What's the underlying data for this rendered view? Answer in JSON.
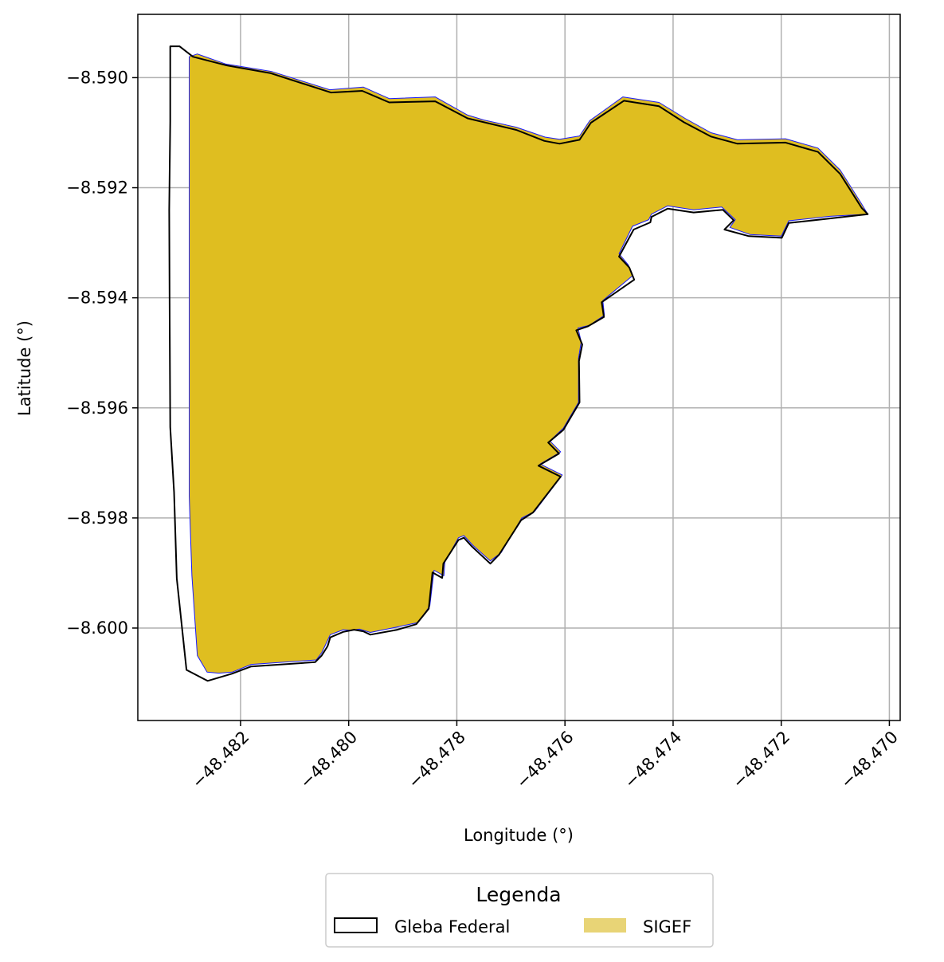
{
  "chart_data": {
    "type": "map",
    "xlabel": "Longitude (°)",
    "ylabel": "Latitude (°)",
    "xlim": [
      -48.4839,
      -48.4698
    ],
    "ylim": [
      -8.60168,
      -8.58885
    ],
    "xticks": [
      -48.482,
      -48.48,
      -48.478,
      -48.476,
      -48.474,
      -48.472,
      -48.47
    ],
    "xtick_labels": [
      "−48.482",
      "−48.480",
      "−48.478",
      "−48.476",
      "−48.474",
      "−48.472",
      "−48.470"
    ],
    "yticks": [
      -8.59,
      -8.592,
      -8.594,
      -8.596,
      -8.598,
      -8.6
    ],
    "ytick_labels": [
      "−8.590",
      "−8.592",
      "−8.594",
      "−8.596",
      "−8.598",
      "−8.600"
    ],
    "grid": true,
    "legend": {
      "title": "Legenda",
      "placement": "bottom-center",
      "entries": [
        {
          "label": "Gleba Federal",
          "style": "outline",
          "color": "#000000"
        },
        {
          "label": "SIGEF",
          "style": "fill",
          "color": "#e8d476"
        }
      ]
    },
    "colors": {
      "sigef_fill": "#dfbe20",
      "sigef_edge": "#1a1aff",
      "gleba_edge": "#000000",
      "grid": "#b0b0b0"
    },
    "series": [
      {
        "name": "Gleba Federal",
        "kind": "polygon-outline",
        "coords": [
          [
            -48.48313,
            -8.58943
          ],
          [
            -48.48288,
            -8.58962
          ],
          [
            -48.48225,
            -8.58978
          ],
          [
            -48.48144,
            -8.58992
          ],
          [
            -48.48033,
            -8.59027
          ],
          [
            -48.47975,
            -8.59024
          ],
          [
            -48.47925,
            -8.59045
          ],
          [
            -48.4784,
            -8.59043
          ],
          [
            -48.4778,
            -8.59074
          ],
          [
            -48.4769,
            -8.59095
          ],
          [
            -48.47638,
            -8.59115
          ],
          [
            -48.4761,
            -8.5912
          ],
          [
            -48.47573,
            -8.59113
          ],
          [
            -48.47552,
            -8.59082
          ],
          [
            -48.47491,
            -8.59042
          ],
          [
            -48.47426,
            -8.59052
          ],
          [
            -48.4738,
            -8.59081
          ],
          [
            -48.4733,
            -8.59107
          ],
          [
            -48.47281,
            -8.5912
          ],
          [
            -48.47192,
            -8.59118
          ],
          [
            -48.47132,
            -8.59135
          ],
          [
            -48.47091,
            -8.59175
          ],
          [
            -48.47051,
            -8.59237
          ],
          [
            -48.4704,
            -8.59248
          ],
          [
            -48.4712,
            -8.59257
          ],
          [
            -48.47186,
            -8.59264
          ],
          [
            -48.47199,
            -8.59291
          ],
          [
            -48.4726,
            -8.59288
          ],
          [
            -48.47305,
            -8.59276
          ],
          [
            -48.47288,
            -8.59259
          ],
          [
            -48.47308,
            -8.5924
          ],
          [
            -48.47362,
            -8.59245
          ],
          [
            -48.4741,
            -8.59238
          ],
          [
            -48.4744,
            -8.59253
          ],
          [
            -48.47442,
            -8.59263
          ],
          [
            -48.47473,
            -8.59276
          ],
          [
            -48.475,
            -8.59325
          ],
          [
            -48.47481,
            -8.59345
          ],
          [
            -48.47472,
            -8.59367
          ],
          [
            -48.47532,
            -8.59408
          ],
          [
            -48.47528,
            -8.59435
          ],
          [
            -48.47558,
            -8.59452
          ],
          [
            -48.47579,
            -8.59459
          ],
          [
            -48.47568,
            -8.59485
          ],
          [
            -48.47574,
            -8.59515
          ],
          [
            -48.47573,
            -8.5959
          ],
          [
            -48.47603,
            -8.5964
          ],
          [
            -48.47631,
            -8.59663
          ],
          [
            -48.47611,
            -8.59683
          ],
          [
            -48.47649,
            -8.59705
          ],
          [
            -48.47608,
            -8.59725
          ],
          [
            -48.47659,
            -8.5979
          ],
          [
            -48.47681,
            -8.59804
          ],
          [
            -48.47722,
            -8.59867
          ],
          [
            -48.47738,
            -8.59883
          ],
          [
            -48.47773,
            -8.59851
          ],
          [
            -48.47787,
            -8.59836
          ],
          [
            -48.47797,
            -8.5984
          ],
          [
            -48.47825,
            -8.59883
          ],
          [
            -48.47827,
            -8.59909
          ],
          [
            -48.47845,
            -8.59899
          ],
          [
            -48.47852,
            -8.59965
          ],
          [
            -48.47875,
            -8.59993
          ],
          [
            -48.4791,
            -8.60003
          ],
          [
            -48.4796,
            -8.60012
          ],
          [
            -48.47973,
            -8.60006
          ],
          [
            -48.4799,
            -8.60003
          ],
          [
            -48.4801,
            -8.60007
          ],
          [
            -48.48034,
            -8.60017
          ],
          [
            -48.48039,
            -8.60033
          ],
          [
            -48.4805,
            -8.6005
          ],
          [
            -48.48062,
            -8.60062
          ],
          [
            -48.48181,
            -8.6007
          ],
          [
            -48.48216,
            -8.60083
          ],
          [
            -48.48261,
            -8.60096
          ],
          [
            -48.483,
            -8.60076
          ],
          [
            -48.48318,
            -8.5991
          ],
          [
            -48.48323,
            -8.59753
          ],
          [
            -48.4833,
            -8.59635
          ],
          [
            -48.48331,
            -8.5944
          ],
          [
            -48.48332,
            -8.5924
          ],
          [
            -48.4833,
            -8.5908
          ],
          [
            -48.4833,
            -8.58943
          ]
        ]
      },
      {
        "name": "SIGEF",
        "kind": "polygon-fill",
        "coords": [
          [
            -48.4828,
            -8.58957
          ],
          [
            -48.48228,
            -8.58975
          ],
          [
            -48.48142,
            -8.58989
          ],
          [
            -48.48035,
            -8.59022
          ],
          [
            -48.47973,
            -8.59017
          ],
          [
            -48.47925,
            -8.59038
          ],
          [
            -48.4784,
            -8.59035
          ],
          [
            -48.4778,
            -8.59068
          ],
          [
            -48.4775,
            -8.59077
          ],
          [
            -48.4769,
            -8.5909
          ],
          [
            -48.47637,
            -8.59108
          ],
          [
            -48.4761,
            -8.59112
          ],
          [
            -48.47573,
            -8.59106
          ],
          [
            -48.47554,
            -8.59078
          ],
          [
            -48.47493,
            -8.59035
          ],
          [
            -48.47426,
            -8.59045
          ],
          [
            -48.47378,
            -8.59074
          ],
          [
            -48.4733,
            -8.591
          ],
          [
            -48.47281,
            -8.59113
          ],
          [
            -48.47192,
            -8.59111
          ],
          [
            -48.47132,
            -8.59128
          ],
          [
            -48.47091,
            -8.59168
          ],
          [
            -48.47051,
            -8.5923
          ],
          [
            -48.4704,
            -8.59248
          ],
          [
            -48.4711,
            -8.59252
          ],
          [
            -48.47186,
            -8.5926
          ],
          [
            -48.472,
            -8.59288
          ],
          [
            -48.47258,
            -8.59285
          ],
          [
            -48.47295,
            -8.59272
          ],
          [
            -48.47285,
            -8.59258
          ],
          [
            -48.4731,
            -8.59235
          ],
          [
            -48.47362,
            -8.5924
          ],
          [
            -48.4741,
            -8.59233
          ],
          [
            -48.4744,
            -8.59248
          ],
          [
            -48.47445,
            -8.59258
          ],
          [
            -48.47475,
            -8.5927
          ],
          [
            -48.475,
            -8.5932
          ],
          [
            -48.47483,
            -8.5934
          ],
          [
            -48.47475,
            -8.5936
          ],
          [
            -48.4753,
            -8.59405
          ],
          [
            -48.47527,
            -8.59432
          ],
          [
            -48.47555,
            -8.5945
          ],
          [
            -48.47576,
            -8.59455
          ],
          [
            -48.4757,
            -8.5948
          ],
          [
            -48.47575,
            -8.5951
          ],
          [
            -48.47575,
            -8.5959
          ],
          [
            -48.47603,
            -8.59637
          ],
          [
            -48.47628,
            -8.5966
          ],
          [
            -48.47608,
            -8.5968
          ],
          [
            -48.47646,
            -8.59702
          ],
          [
            -48.47605,
            -8.59722
          ],
          [
            -48.47656,
            -8.59788
          ],
          [
            -48.4768,
            -8.598
          ],
          [
            -48.47718,
            -8.59863
          ],
          [
            -48.47738,
            -8.59878
          ],
          [
            -48.4777,
            -8.5985
          ],
          [
            -48.47787,
            -8.59832
          ],
          [
            -48.47797,
            -8.59836
          ],
          [
            -48.47822,
            -8.5988
          ],
          [
            -48.47824,
            -8.59905
          ],
          [
            -48.47842,
            -8.59895
          ],
          [
            -48.4785,
            -8.5996
          ],
          [
            -48.47872,
            -8.5999
          ],
          [
            -48.4791,
            -8.59998
          ],
          [
            -48.4796,
            -8.60008
          ],
          [
            -48.4798,
            -8.60002
          ],
          [
            -48.47998,
            -8.60004
          ],
          [
            -48.4801,
            -8.60003
          ],
          [
            -48.48034,
            -8.60012
          ],
          [
            -48.4805,
            -8.60045
          ],
          [
            -48.4806,
            -8.60058
          ],
          [
            -48.4818,
            -8.60066
          ],
          [
            -48.48215,
            -8.6008
          ],
          [
            -48.4824,
            -8.60082
          ],
          [
            -48.48262,
            -8.6008
          ],
          [
            -48.4828,
            -8.6005
          ],
          [
            -48.4829,
            -8.59905
          ],
          [
            -48.48295,
            -8.5976
          ],
          [
            -48.48295,
            -8.5964
          ],
          [
            -48.48295,
            -8.5944
          ],
          [
            -48.48295,
            -8.5924
          ],
          [
            -48.48295,
            -8.5908
          ],
          [
            -48.48295,
            -8.58962
          ]
        ]
      }
    ]
  }
}
